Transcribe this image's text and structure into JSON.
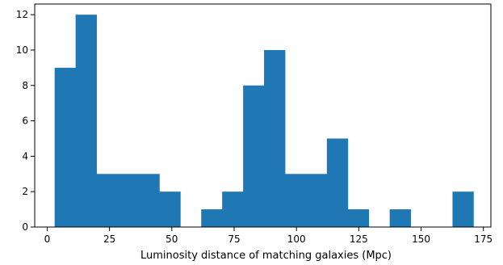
{
  "chart_data": {
    "type": "bar",
    "bin_edges": [
      3.0,
      11.4,
      19.8,
      28.2,
      36.6,
      45.0,
      53.4,
      61.8,
      70.2,
      78.6,
      87.0,
      95.4,
      103.8,
      112.2,
      120.6,
      129.0,
      137.4,
      145.8,
      154.2,
      162.6,
      171.0
    ],
    "values": [
      9,
      12,
      3,
      3,
      3,
      2,
      0,
      1,
      2,
      8,
      10,
      3,
      3,
      5,
      1,
      0,
      1,
      0,
      0,
      2
    ],
    "xlabel": "Luminosity distance of matching galaxies (Mpc)",
    "ylabel": "",
    "xlim": [
      -5,
      178
    ],
    "ylim": [
      0,
      12.6
    ],
    "xticks": [
      "0",
      "25",
      "50",
      "75",
      "100",
      "125",
      "150",
      "175"
    ],
    "yticks": [
      "0",
      "2",
      "4",
      "6",
      "8",
      "10",
      "12"
    ],
    "bar_color": "#1f77b4",
    "grid": false
  }
}
